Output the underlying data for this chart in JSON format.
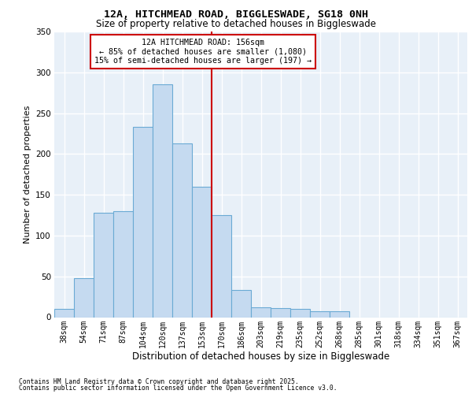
{
  "title": "12A, HITCHMEAD ROAD, BIGGLESWADE, SG18 0NH",
  "subtitle": "Size of property relative to detached houses in Biggleswade",
  "xlabel": "Distribution of detached houses by size in Biggleswade",
  "ylabel": "Number of detached properties",
  "categories": [
    "38sqm",
    "54sqm",
    "71sqm",
    "87sqm",
    "104sqm",
    "120sqm",
    "137sqm",
    "153sqm",
    "170sqm",
    "186sqm",
    "203sqm",
    "219sqm",
    "235sqm",
    "252sqm",
    "268sqm",
    "285sqm",
    "301sqm",
    "318sqm",
    "334sqm",
    "351sqm",
    "367sqm"
  ],
  "values": [
    10,
    48,
    128,
    130,
    233,
    285,
    213,
    160,
    125,
    33,
    12,
    11,
    10,
    7,
    7,
    0,
    0,
    0,
    0,
    0,
    0
  ],
  "bar_color": "#c5daf0",
  "bar_edge_color": "#6aaad4",
  "vline_color": "#cc0000",
  "vline_position": 7.5,
  "annotation_line1": "12A HITCHMEAD ROAD: 156sqm",
  "annotation_line2": "← 85% of detached houses are smaller (1,080)",
  "annotation_line3": "15% of semi-detached houses are larger (197) →",
  "annotation_box_edgecolor": "#cc0000",
  "bg_color": "#e8f0f8",
  "ylim": [
    0,
    350
  ],
  "yticks": [
    0,
    50,
    100,
    150,
    200,
    250,
    300,
    350
  ],
  "title_fontsize": 9.5,
  "subtitle_fontsize": 8.5,
  "ylabel_fontsize": 8,
  "xlabel_fontsize": 8.5,
  "tick_fontsize": 7.5,
  "xtick_fontsize": 7,
  "footer_line1": "Contains HM Land Registry data © Crown copyright and database right 2025.",
  "footer_line2": "Contains public sector information licensed under the Open Government Licence v3.0."
}
